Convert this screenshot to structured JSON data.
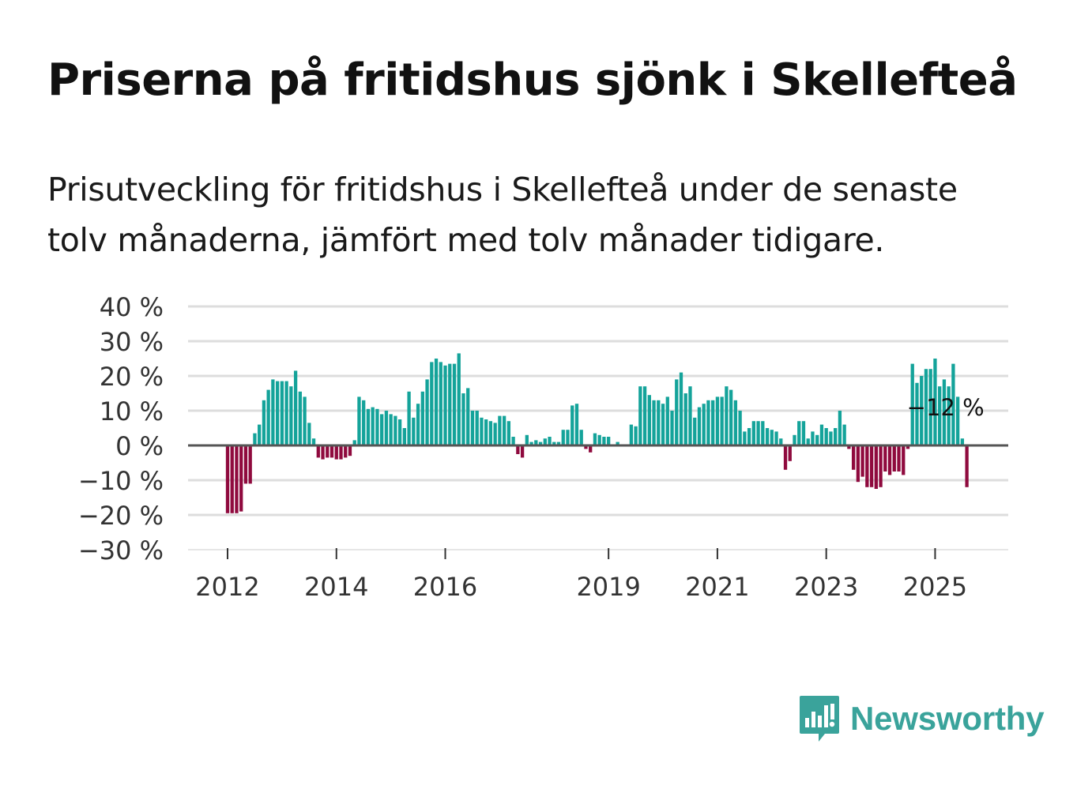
{
  "title": "Priserna på fritidshus sjönk i Skellefteå",
  "subtitle": "Prisutveckling för fritidshus i Skellefteå under de senaste tolv månaderna, jämfört med tolv månader tidigare.",
  "brand": {
    "name": "Newsworthy",
    "color": "#3aa39b",
    "icon": "newsworthy-logo-icon"
  },
  "colors": {
    "positive": "#14a39a",
    "negative": "#8f0a3e",
    "grid": "#dddddd",
    "zero": "#555555",
    "text": "#333333"
  },
  "chart_data": {
    "type": "bar",
    "title": "Priserna på fritidshus sjönk i Skellefteå",
    "xlabel": "",
    "ylabel": "",
    "ylim": [
      -30,
      40
    ],
    "yticks": [
      40,
      30,
      20,
      10,
      0,
      -10,
      -20,
      -30
    ],
    "ytick_labels": [
      "40 %",
      "30 %",
      "20 %",
      "10 %",
      "0 %",
      "−10 %",
      "−20 %",
      "−30 %"
    ],
    "xticks": [
      {
        "label": "2012",
        "index": 0
      },
      {
        "label": "2014",
        "index": 24
      },
      {
        "label": "2016",
        "index": 48
      },
      {
        "label": "2019",
        "index": 84
      },
      {
        "label": "2021",
        "index": 108
      },
      {
        "label": "2023",
        "index": 132
      },
      {
        "label": "2025",
        "index": 156
      }
    ],
    "start": "2011-12",
    "frequency": "monthly",
    "series": [
      {
        "name": "Prisutveckling (%)",
        "values": [
          -19.5,
          -19.5,
          -19.5,
          -19,
          -11,
          -11,
          3.5,
          6,
          13,
          16,
          19,
          18.5,
          18.5,
          18.5,
          17,
          21.5,
          15.5,
          14,
          6.5,
          2,
          -3.5,
          -4,
          -3.5,
          -3.5,
          -4,
          -4,
          -3.5,
          -3,
          1.5,
          14,
          13,
          10.5,
          11,
          10.5,
          9,
          10,
          9,
          8.5,
          7.5,
          5,
          15.5,
          8,
          12,
          15.5,
          19,
          24,
          25,
          24,
          23,
          23.5,
          23.5,
          26.5,
          15,
          16.5,
          10,
          10,
          8,
          7.5,
          7,
          6.5,
          8.5,
          8.5,
          7,
          2.5,
          -2.5,
          -3.5,
          3,
          1,
          1.5,
          1,
          2,
          2.5,
          1,
          1,
          4.5,
          4.5,
          11.5,
          12,
          4.5,
          -1,
          -2,
          3.5,
          3,
          2.5,
          2.5,
          0,
          1,
          0,
          0,
          6,
          5.5,
          17,
          17,
          14.5,
          13,
          13,
          12,
          14,
          10,
          19,
          21,
          15,
          17,
          8,
          11,
          12,
          13,
          13,
          14,
          14,
          17,
          16,
          13,
          10,
          4,
          5,
          7,
          7,
          7,
          5,
          4.5,
          4,
          2,
          -7,
          -4.5,
          3,
          7,
          7,
          2,
          4,
          3,
          6,
          5,
          4,
          5,
          10,
          6,
          -1,
          -7,
          -10.5,
          -9,
          -12,
          -12,
          -12.5,
          -12,
          -7.5,
          -8.5,
          -7.5,
          -7.5,
          -8.5,
          -1,
          23.5,
          18,
          20,
          22,
          22,
          25,
          17,
          19,
          17,
          23.5,
          14,
          2,
          -12
        ]
      }
    ],
    "annotation": {
      "label": "−12 %",
      "index": 159
    }
  }
}
